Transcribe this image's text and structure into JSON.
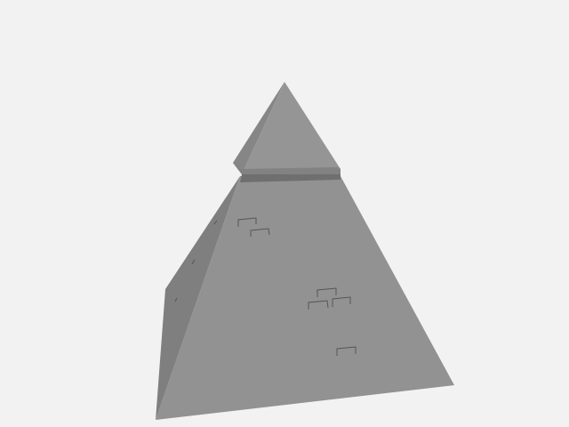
{
  "viewport": {
    "background": "#f2f2f2"
  },
  "model": {
    "shape": "pyramid",
    "colors": {
      "front_face": "#929292",
      "left_face": "#7f7f7f",
      "cap_front": "#959595",
      "cap_left": "#868686",
      "cap_ledge": "#828282",
      "ledge_shadow": "#6f6f6f",
      "brick_outline": "#555555"
    }
  }
}
